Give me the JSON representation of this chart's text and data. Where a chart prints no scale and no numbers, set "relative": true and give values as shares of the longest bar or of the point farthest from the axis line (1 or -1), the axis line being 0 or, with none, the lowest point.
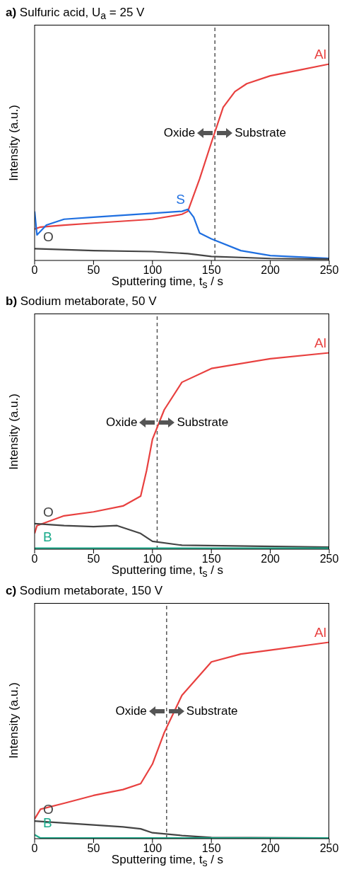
{
  "chart_data": [
    {
      "type": "line",
      "title": "a) Sulfuric acid, U$_{a}$ = 25 V",
      "xlabel": "Sputtering time, t$_{s}$ / s",
      "ylabel": "Intensity (a.u.)",
      "relative": true,
      "xlim": [
        0,
        250
      ],
      "xticks": [
        0,
        50,
        100,
        150,
        200,
        250
      ],
      "tick_labels": "x",
      "marker": "none",
      "line_style": "solid",
      "series": [
        {
          "name": "Al",
          "color": "#e8403f",
          "x": [
            0,
            5,
            25,
            50,
            100,
            125,
            130,
            140,
            150,
            160,
            170,
            180,
            200,
            225,
            250
          ],
          "values": [
            0.16,
            0.17,
            0.18,
            0.19,
            0.21,
            0.235,
            0.25,
            0.415,
            0.6,
            0.78,
            0.86,
            0.9,
            0.94,
            0.97,
            1
          ]
        },
        {
          "name": "S",
          "color": "#1f6fe0",
          "x": [
            0,
            2,
            10,
            25,
            50,
            100,
            125,
            130,
            135,
            140,
            150,
            175,
            200,
            250
          ],
          "values": [
            0.25,
            0.13,
            0.18,
            0.21,
            0.22,
            0.24,
            0.25,
            0.26,
            0.22,
            0.14,
            0.11,
            0.05,
            0.025,
            0.01
          ]
        },
        {
          "name": "O",
          "color": "#444444",
          "x": [
            0,
            50,
            100,
            130,
            150,
            200,
            250
          ],
          "values": [
            0.06,
            0.05,
            0.045,
            0.035,
            0.02,
            0.01,
            0.007
          ]
        }
      ],
      "ref_lines": [
        {
          "axis": "x",
          "value": 153,
          "line_style": "dashed",
          "color": "#555555"
        }
      ],
      "annotations": [
        "Oxide",
        "Substrate"
      ]
    },
    {
      "type": "line",
      "title": "b) Sodium metaborate, 50 V",
      "xlabel": "Sputtering time, t$_{s}$ / s",
      "ylabel": "Intensity (a.u.)",
      "relative": true,
      "xlim": [
        0,
        250
      ],
      "xticks": [
        0,
        50,
        100,
        150,
        200,
        250
      ],
      "tick_labels": "x",
      "marker": "none",
      "line_style": "solid",
      "series": [
        {
          "name": "Al",
          "color": "#e8403f",
          "x": [
            0,
            2,
            25,
            50,
            75,
            90,
            95,
            100,
            110,
            125,
            150,
            200,
            250
          ],
          "values": [
            0.08,
            0.12,
            0.17,
            0.19,
            0.22,
            0.27,
            0.4,
            0.56,
            0.71,
            0.85,
            0.92,
            0.97,
            1
          ]
        },
        {
          "name": "O",
          "color": "#444444",
          "x": [
            0,
            25,
            50,
            70,
            90,
            100,
            125,
            250
          ],
          "values": [
            0.13,
            0.12,
            0.115,
            0.12,
            0.08,
            0.04,
            0.02,
            0.01
          ]
        },
        {
          "name": "B",
          "color": "#1aaa8a",
          "x": [
            0,
            250
          ],
          "values": [
            0.005,
            0.005
          ]
        }
      ],
      "ref_lines": [
        {
          "axis": "x",
          "value": 104,
          "line_style": "dashed",
          "color": "#555555"
        }
      ],
      "annotations": [
        "Oxide",
        "Substrate"
      ]
    },
    {
      "type": "line",
      "title": "c) Sodium metaborate, 150 V",
      "xlabel": "Sputtering time, t$_{s}$ / s",
      "ylabel": "Intensity (a.u.)",
      "relative": true,
      "xlim": [
        0,
        250
      ],
      "xticks": [
        0,
        50,
        100,
        150,
        200,
        250
      ],
      "tick_labels": "x",
      "marker": "none",
      "line_style": "solid",
      "series": [
        {
          "name": "Al",
          "color": "#e8403f",
          "x": [
            0,
            5,
            25,
            50,
            75,
            90,
            100,
            110,
            125,
            150,
            175,
            200,
            250
          ],
          "values": [
            0.1,
            0.15,
            0.18,
            0.22,
            0.25,
            0.28,
            0.38,
            0.54,
            0.73,
            0.9,
            0.94,
            0.96,
            1
          ]
        },
        {
          "name": "O",
          "color": "#444444",
          "x": [
            0,
            25,
            50,
            75,
            90,
            100,
            125,
            150,
            250
          ],
          "values": [
            0.09,
            0.08,
            0.07,
            0.06,
            0.05,
            0.03,
            0.016,
            0.006,
            0.003
          ]
        },
        {
          "name": "B",
          "color": "#1aaa8a",
          "x": [
            0,
            5,
            250
          ],
          "values": [
            0.02,
            0.003,
            0.003
          ]
        }
      ],
      "ref_lines": [
        {
          "axis": "x",
          "value": 112,
          "line_style": "dashed",
          "color": "#555555"
        }
      ],
      "annotations": [
        "Oxide",
        "Substrate"
      ]
    }
  ]
}
